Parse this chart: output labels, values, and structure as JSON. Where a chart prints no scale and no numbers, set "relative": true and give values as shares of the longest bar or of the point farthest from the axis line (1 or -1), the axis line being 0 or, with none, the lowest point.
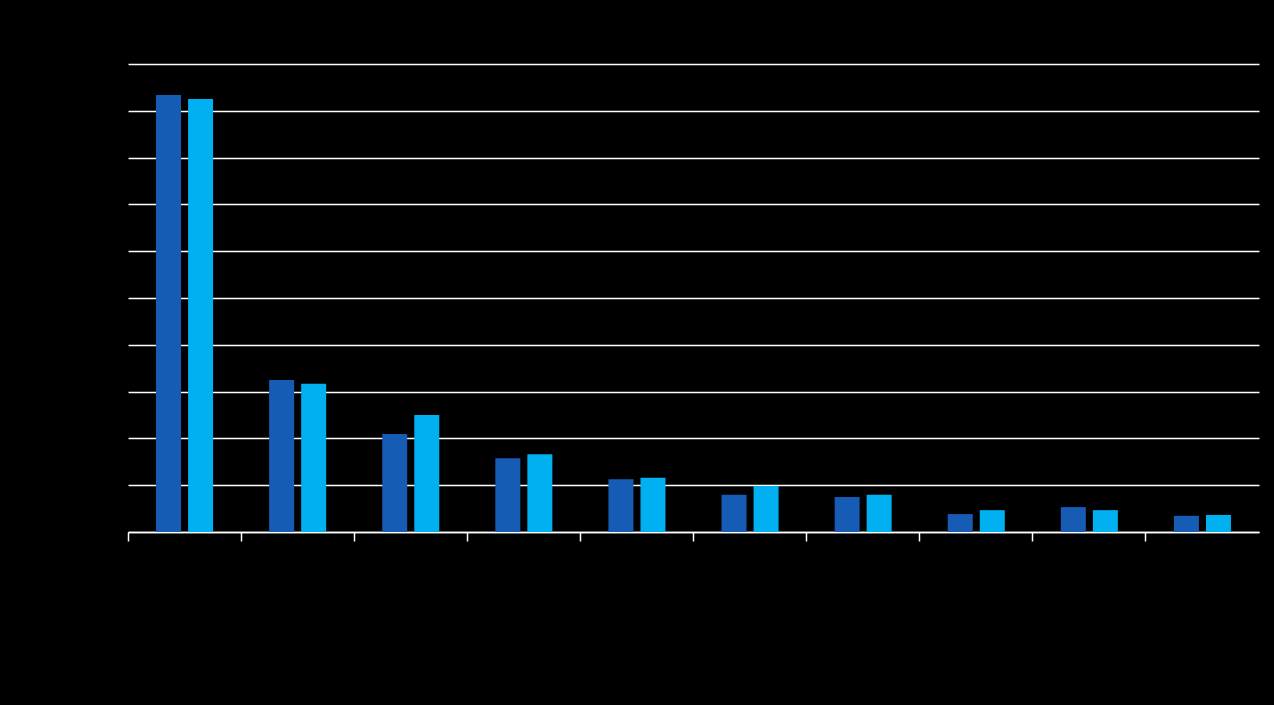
{
  "chart_data": {
    "type": "bar",
    "relative": true,
    "categories": [
      null,
      null,
      null,
      null,
      null,
      null,
      null,
      null,
      null,
      null
    ],
    "series": [
      {
        "color": "#175cb4",
        "values": [
          1,
          0.348,
          0.224,
          0.169,
          0.121,
          0.085,
          0.08,
          0.041,
          0.057,
          0.037
        ]
      },
      {
        "color": "#00b0f0",
        "values": [
          0.991,
          0.339,
          0.268,
          0.178,
          0.124,
          0.105,
          0.085,
          0.05,
          0.05,
          0.039
        ]
      }
    ],
    "grid": "y"
  }
}
